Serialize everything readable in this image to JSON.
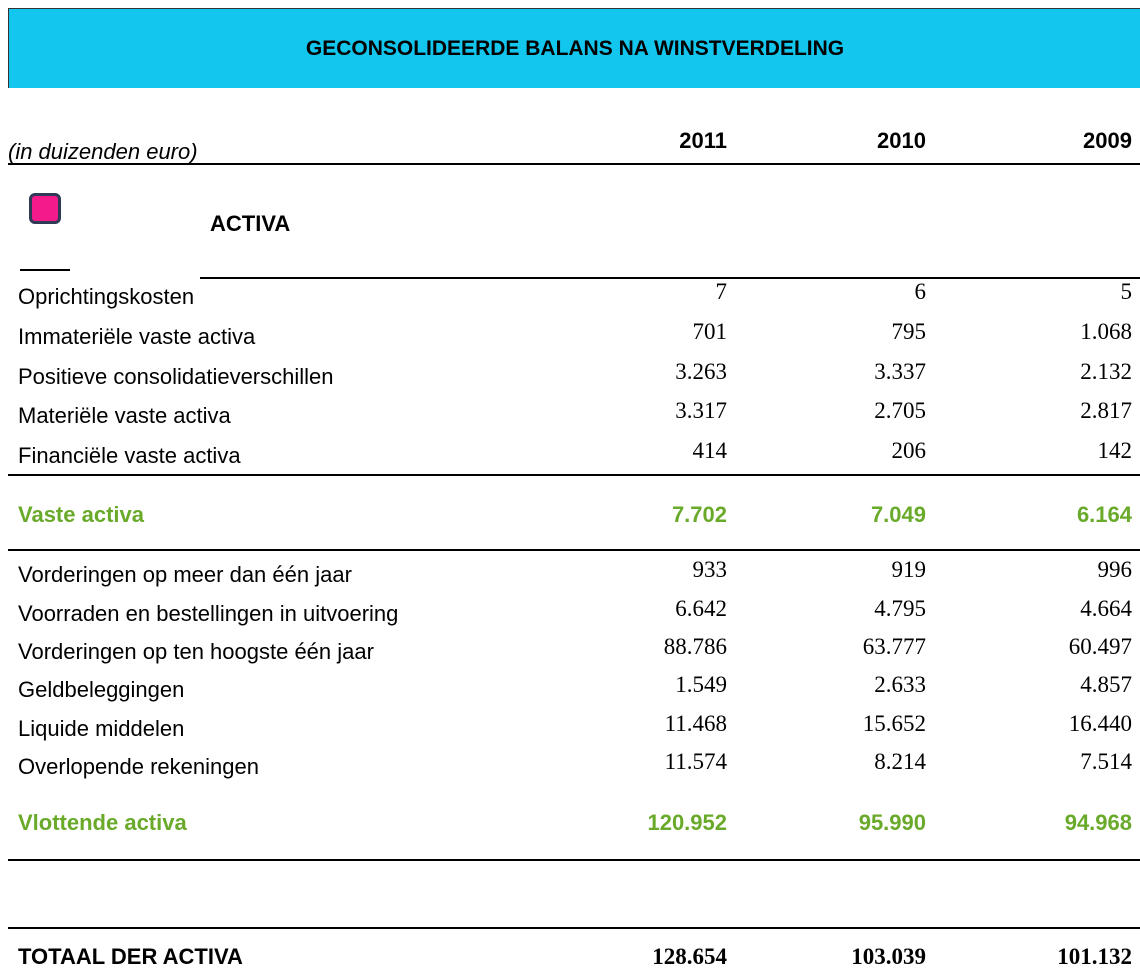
{
  "header": {
    "title": "GECONSOLIDEERDE BALANS NA WINSTVERDELING"
  },
  "table": {
    "unit_label": "(in duizenden euro)",
    "columns": [
      "2011",
      "2010",
      "2009"
    ],
    "section": "ACTIVA",
    "groups": [
      {
        "rows": [
          {
            "label": "Oprichtingskosten",
            "values": [
              "7",
              "6",
              "5"
            ]
          },
          {
            "label": "Immateriële vaste activa",
            "values": [
              "701",
              "795",
              "1.068"
            ]
          },
          {
            "label": "Positieve consolidatieverschillen",
            "values": [
              "3.263",
              "3.337",
              "2.132"
            ]
          },
          {
            "label": "Materiële vaste activa",
            "values": [
              "3.317",
              "2.705",
              "2.817"
            ]
          },
          {
            "label": "Financiële vaste activa",
            "values": [
              "414",
              "206",
              "142"
            ]
          }
        ],
        "subtotal": {
          "label": "Vaste activa",
          "values": [
            "7.702",
            "7.049",
            "6.164"
          ]
        }
      },
      {
        "rows": [
          {
            "label": "Vorderingen op meer dan één jaar",
            "values": [
              "933",
              "919",
              "996"
            ]
          },
          {
            "label": "Voorraden en bestellingen in uitvoering",
            "values": [
              "6.642",
              "4.795",
              "4.664"
            ]
          },
          {
            "label": "Vorderingen op ten hoogste één jaar",
            "values": [
              "88.786",
              "63.777",
              "60.497"
            ]
          },
          {
            "label": "Geldbeleggingen",
            "values": [
              "1.549",
              "2.633",
              "4.857"
            ]
          },
          {
            "label": "Liquide middelen",
            "values": [
              "11.468",
              "15.652",
              "16.440"
            ]
          },
          {
            "label": "Overlopende rekeningen",
            "values": [
              "11.574",
              "8.214",
              "7.514"
            ]
          }
        ],
        "subtotal": {
          "label": "Vlottende activa",
          "values": [
            "120.952",
            "95.990",
            "94.968"
          ]
        }
      }
    ],
    "total": {
      "label": "TOTAAL DER ACTIVA",
      "values": [
        "128.654",
        "103.039",
        "101.132"
      ]
    }
  }
}
